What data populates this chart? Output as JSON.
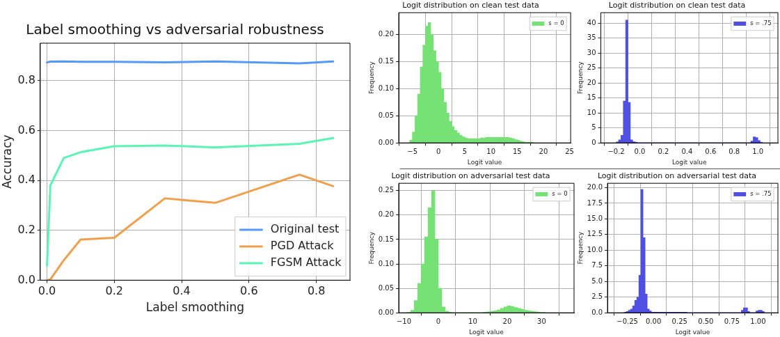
{
  "chart_data": [
    {
      "type": "line",
      "title": "Label smoothing vs adversarial robustness",
      "xlabel": "Label smoothing",
      "ylabel": "Accuracy",
      "x": [
        0,
        0.01,
        0.05,
        0.1,
        0.2,
        0.35,
        0.5,
        0.75,
        0.85
      ],
      "series": [
        {
          "name": "Original test",
          "color": "#5599f8",
          "values": [
            0.873,
            0.876,
            0.877,
            0.875,
            0.875,
            0.873,
            0.877,
            0.869,
            0.877
          ]
        },
        {
          "name": "PGD Attack",
          "color": "#f0a04c",
          "values": [
            0,
            0.003,
            0.08,
            0.163,
            0.17,
            0.328,
            0.31,
            0.423,
            0.377
          ]
        },
        {
          "name": "FGSM Attack",
          "color": "#5af4b4",
          "values": [
            0.058,
            0.38,
            0.49,
            0.513,
            0.537,
            0.54,
            0.532,
            0.547,
            0.57
          ]
        }
      ],
      "xlim": [
        -0.02,
        0.9
      ],
      "xticks": [
        {
          "value": 0,
          "label": "0.0"
        },
        0.2,
        0.4,
        0.6,
        0.8
      ],
      "ylim": [
        0,
        0.95
      ],
      "yticks": [
        {
          "value": 0,
          "label": "0.0"
        },
        0.2,
        0.4,
        0.6,
        0.8
      ],
      "grid": true,
      "legend": "bottom right"
    },
    {
      "type": "histogram",
      "title": "Logit distribution on clean test data",
      "xlabel": "Logit value",
      "ylabel": "Frequency",
      "bins": [
        -5.5,
        -5,
        -4.5,
        -4,
        -3.5,
        -3,
        -2.5,
        -2,
        -1.5,
        -1,
        -0.5,
        0,
        0.5,
        1,
        1.5,
        2,
        2.5,
        3,
        3.5,
        4,
        4.5,
        5,
        5.5,
        6,
        6.5,
        7,
        7.5,
        8,
        8.5,
        9,
        9.5,
        10,
        10.5,
        11,
        11.5,
        12,
        12.5,
        13,
        13.5,
        14,
        14.5,
        15,
        15.5,
        16,
        16.5,
        17,
        17.5,
        18
      ],
      "series": [
        {
          "name": "s = 0",
          "color": "#76e276",
          "values": [
            0.005,
            0.02,
            0.05,
            0.09,
            0.14,
            0.18,
            0.215,
            0.222,
            0.2,
            0.17,
            0.15,
            0.13,
            0.1,
            0.075,
            0.055,
            0.04,
            0.03,
            0.023,
            0.018,
            0.014,
            0.011,
            0.009,
            0.008,
            0.008,
            0.008,
            0.008,
            0.008,
            0.009,
            0.009,
            0.01,
            0.01,
            0.01,
            0.01,
            0.01,
            0.01,
            0.01,
            0.01,
            0.01,
            0.009,
            0.008,
            0.006,
            0.005,
            0.003,
            0.002,
            0.001,
            0.001,
            0.001
          ]
        }
      ],
      "xlim": [
        -7.6,
        25.2
      ],
      "xticks": [
        {
          "value": -5,
          "label": "−5"
        },
        0,
        5,
        10,
        15,
        20,
        25
      ],
      "ylim": [
        0,
        0.24
      ],
      "yticks": [
        {
          "value": 0,
          "label": "0.00"
        },
        0.05,
        {
          "value": 0.1,
          "label": "0.10"
        },
        0.15,
        {
          "value": 0.2,
          "label": "0.20"
        }
      ],
      "grid": true,
      "legend": "top right"
    },
    {
      "type": "histogram",
      "title": "Logit distribution on clean test data",
      "xlabel": "Logit value",
      "ylabel": "Frequency",
      "bins": [
        -0.2,
        -0.18,
        -0.16,
        -0.14,
        -0.12,
        -0.1,
        -0.08,
        -0.06,
        -0.04,
        -0.02,
        0,
        0.02,
        0.04,
        0.06,
        0.08,
        0.1,
        0.12,
        0.14,
        0.16,
        0.18,
        0.2,
        0.22,
        0.24,
        0.26,
        0.28,
        0.3,
        0.32,
        0.34,
        0.36,
        0.38,
        0.4,
        0.42,
        0.44,
        0.46,
        0.48,
        0.5,
        0.52,
        0.54,
        0.56,
        0.58,
        0.6,
        0.62,
        0.64,
        0.66,
        0.68,
        0.7,
        0.72,
        0.74,
        0.76,
        0.78,
        0.8,
        0.82,
        0.84,
        0.86,
        0.88,
        0.9,
        0.92,
        0.94,
        0.96,
        0.98,
        1,
        1.02,
        1.04
      ],
      "series": [
        {
          "name": "s = .75",
          "color": "#4f4fe2",
          "values": [
            0.3,
            1,
            2.5,
            14,
            41,
            13.5,
            1,
            0.4,
            0.2,
            0,
            0,
            0,
            0,
            0,
            0,
            0,
            0,
            0,
            0,
            0,
            0,
            0,
            0,
            0,
            0,
            0,
            0,
            0,
            0,
            0,
            0,
            0,
            0,
            0,
            0,
            0,
            0,
            0,
            0,
            0,
            0,
            0,
            0,
            0,
            0,
            0,
            0,
            0,
            0,
            0,
            0,
            0,
            0,
            0,
            0,
            0,
            0,
            0.6,
            2,
            1.8,
            0.8,
            0.2
          ]
        }
      ],
      "xlim": [
        -0.33,
        1.17
      ],
      "xticks": [
        {
          "value": -0.2,
          "label": "−0.2"
        },
        {
          "value": 0,
          "label": "0.0"
        },
        0.2,
        0.4,
        0.6,
        0.8,
        {
          "value": 1,
          "label": "1.0"
        }
      ],
      "ylim": [
        0,
        43.5
      ],
      "yticks": [
        0,
        5,
        10,
        15,
        20,
        25,
        30,
        35,
        40
      ],
      "grid": true,
      "legend": "top right"
    },
    {
      "type": "histogram",
      "title": "Logit distribution on adversarial test data",
      "xlabel": "Logit value",
      "ylabel": "Frequency",
      "bins": [
        -9,
        -8,
        -7,
        -6,
        -5,
        -4,
        -3,
        -2,
        -1,
        0,
        1,
        2,
        3,
        4,
        5,
        6,
        7,
        8,
        9,
        10,
        11,
        12,
        13,
        14,
        15,
        16,
        17,
        18,
        19,
        20,
        21,
        22,
        23,
        24,
        25,
        26,
        27,
        28,
        29,
        30,
        31
      ],
      "series": [
        {
          "name": "s = 0",
          "color": "#76e276",
          "values": [
            0.001,
            0.005,
            0.025,
            0.06,
            0.1,
            0.155,
            0.215,
            0.25,
            0.15,
            0.05,
            0.012,
            0.003,
            0.001,
            0,
            0,
            0,
            0,
            0,
            0,
            0,
            0,
            0,
            0.001,
            0.002,
            0.003,
            0.004,
            0.006,
            0.009,
            0.012,
            0.014,
            0.013,
            0.011,
            0.009,
            0.007,
            0.005,
            0.004,
            0.003,
            0.002,
            0.001,
            0.001
          ]
        }
      ],
      "xlim": [
        -11.5,
        39.4
      ],
      "xticks": [
        {
          "value": -10,
          "label": "−10"
        },
        0,
        10,
        20,
        30
      ],
      "ylim": [
        0,
        0.265
      ],
      "yticks": [
        {
          "value": 0,
          "label": "0.00"
        },
        0.05,
        {
          "value": 0.1,
          "label": "0.10"
        },
        0.15,
        {
          "value": 0.2,
          "label": "0.20"
        },
        0.25
      ],
      "grid": true,
      "legend": "top right"
    },
    {
      "type": "histogram",
      "title": "Logit distribution on adversarial test data",
      "xlabel": "Logit value",
      "ylabel": "Frequency",
      "bins": [
        -0.28,
        -0.26,
        -0.24,
        -0.22,
        -0.2,
        -0.18,
        -0.16,
        -0.14,
        -0.12,
        -0.1,
        -0.08,
        -0.06,
        -0.04,
        -0.02,
        0,
        0.02,
        0.04,
        0.06,
        0.08,
        0.1,
        0.12,
        0.14,
        0.16,
        0.18,
        0.2,
        0.22,
        0.24,
        0.26,
        0.28,
        0.3,
        0.32,
        0.34,
        0.36,
        0.38,
        0.4,
        0.42,
        0.44,
        0.46,
        0.48,
        0.5,
        0.52,
        0.54,
        0.56,
        0.58,
        0.6,
        0.62,
        0.64,
        0.66,
        0.68,
        0.7,
        0.72,
        0.74,
        0.76,
        0.78,
        0.8,
        0.82,
        0.84,
        0.86,
        0.88,
        0.9,
        0.92,
        0.94,
        0.96,
        0.98,
        1,
        1.02,
        1.04,
        1.06
      ],
      "series": [
        {
          "name": "s = .75",
          "color": "#4f4fe2",
          "values": [
            0.1,
            0.2,
            0.4,
            0.6,
            1.1,
            2,
            2.5,
            6,
            19.7,
            12,
            3,
            0.6,
            0.3,
            0.1,
            0.1,
            0.1,
            0.1,
            0.1,
            0.1,
            0.1,
            0.1,
            0.1,
            0.1,
            0.1,
            0.1,
            0.1,
            0.1,
            0.1,
            0.1,
            0.1,
            0,
            0,
            0,
            0,
            0,
            0,
            0,
            0,
            0,
            0,
            0,
            0,
            0,
            0,
            0,
            0,
            0,
            0,
            0,
            0,
            0,
            0,
            0,
            0,
            0,
            0,
            0.4,
            0.8,
            0.8,
            0.2,
            0,
            0,
            0,
            0.3,
            0.4,
            0.4,
            0.2
          ]
        }
      ],
      "xlim": [
        -0.44,
        1.19
      ],
      "xticks": [
        {
          "value": -0.25,
          "label": "−0.25"
        },
        {
          "value": 0,
          "label": "0.00"
        },
        0.25,
        {
          "value": 0.5,
          "label": "0.50"
        },
        0.75,
        {
          "value": 1,
          "label": "1.00"
        }
      ],
      "ylim": [
        0,
        20.7
      ],
      "yticks": [
        {
          "value": 0,
          "label": "0.0"
        },
        2.5,
        {
          "value": 5,
          "label": "5.0"
        },
        7.5,
        {
          "value": 10,
          "label": "10.0"
        },
        12.5,
        {
          "value": 15,
          "label": "15.0"
        },
        17.5,
        {
          "value": 20,
          "label": "20.0"
        }
      ],
      "grid": true,
      "legend": "top right"
    }
  ]
}
